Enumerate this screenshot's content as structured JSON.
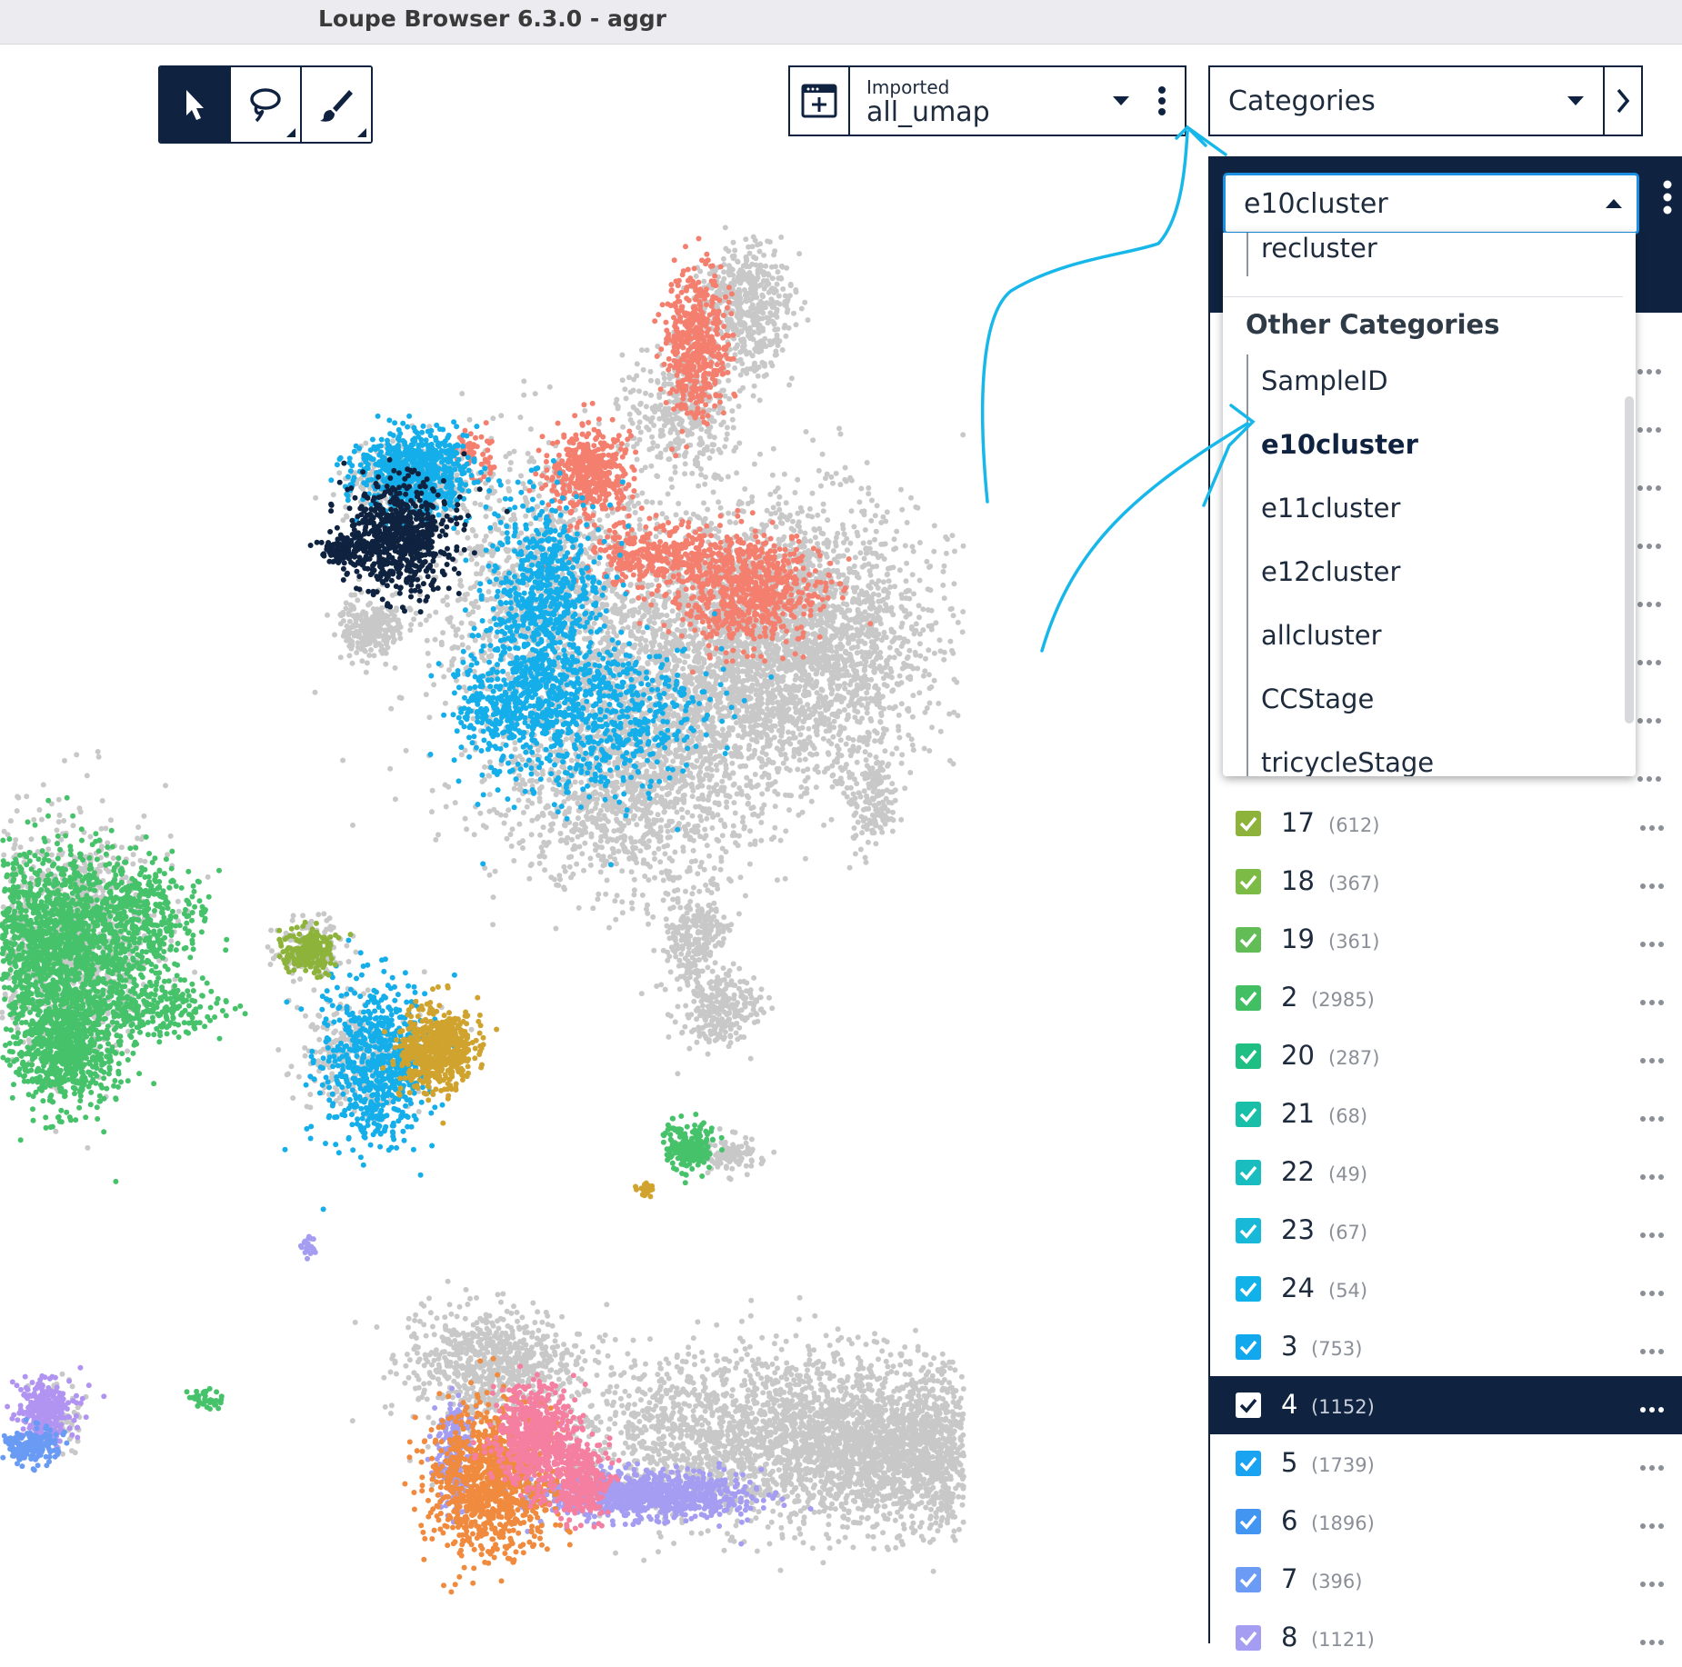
{
  "window": {
    "title": "Loupe Browser 6.3.0 - aggr"
  },
  "tools": [
    {
      "name": "pointer-icon"
    },
    {
      "name": "lasso-icon"
    },
    {
      "name": "brush-icon"
    }
  ],
  "projection": {
    "label": "Imported",
    "value": "all_umap"
  },
  "category_mode": {
    "value": "Categories"
  },
  "cluster_select": {
    "value": "e10cluster"
  },
  "dropdown": {
    "top_item": "recluster",
    "section_header": "Other Categories",
    "items": [
      "SampleID",
      "e10cluster",
      "e11cluster",
      "e12cluster",
      "allcluster",
      "CCStage",
      "tricycleStage"
    ],
    "selected": "e10cluster"
  },
  "clusters": [
    {
      "id": "17",
      "count": "(612)",
      "color": "#8db33a"
    },
    {
      "id": "18",
      "count": "(367)",
      "color": "#7cbb45"
    },
    {
      "id": "19",
      "count": "(361)",
      "color": "#62bd57"
    },
    {
      "id": "2",
      "count": "(2985)",
      "color": "#42bf63"
    },
    {
      "id": "20",
      "count": "(287)",
      "color": "#1fbf83"
    },
    {
      "id": "21",
      "count": "(68)",
      "color": "#19bfa9"
    },
    {
      "id": "22",
      "count": "(49)",
      "color": "#19bdc0"
    },
    {
      "id": "23",
      "count": "(67)",
      "color": "#18b9d8"
    },
    {
      "id": "24",
      "count": "(54)",
      "color": "#11b1ea"
    },
    {
      "id": "3",
      "count": "(753)",
      "color": "#12a8ee"
    },
    {
      "id": "4",
      "count": "(1152)",
      "color": "#0f2341",
      "selected": true
    },
    {
      "id": "5",
      "count": "(1739)",
      "color": "#1aa3f0"
    },
    {
      "id": "6",
      "count": "(1896)",
      "color": "#4296f2"
    },
    {
      "id": "7",
      "count": "(396)",
      "color": "#6b9bf4"
    },
    {
      "id": "8",
      "count": "(1121)",
      "color": "#a49df2"
    }
  ]
}
